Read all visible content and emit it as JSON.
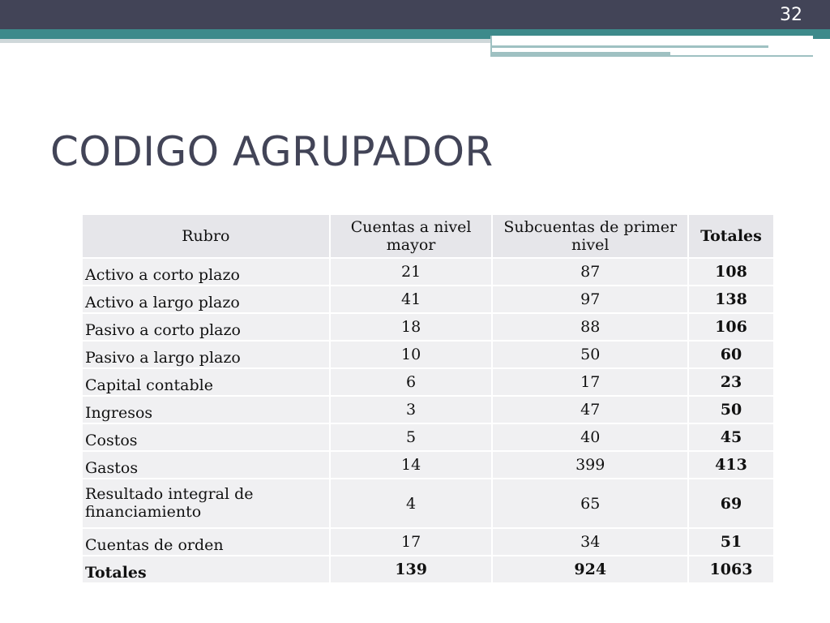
{
  "slide": {
    "page_number": "32",
    "title": "CODIGO AGRUPADOR"
  },
  "table": {
    "headers": [
      "Rubro",
      "Cuentas a nivel mayor",
      "Subcuentas de primer nivel",
      "Totales"
    ],
    "rows": [
      {
        "rubro": "Activo a corto plazo",
        "mayor": "21",
        "subcuentas": "87",
        "total": "108"
      },
      {
        "rubro": "Activo a largo plazo",
        "mayor": "41",
        "subcuentas": "97",
        "total": "138"
      },
      {
        "rubro": "Pasivo a corto plazo",
        "mayor": "18",
        "subcuentas": "88",
        "total": "106"
      },
      {
        "rubro": "Pasivo a largo plazo",
        "mayor": "10",
        "subcuentas": "50",
        "total": "60"
      },
      {
        "rubro": "Capital contable",
        "mayor": "6",
        "subcuentas": "17",
        "total": "23"
      },
      {
        "rubro": "Ingresos",
        "mayor": "3",
        "subcuentas": "47",
        "total": "50"
      },
      {
        "rubro": "Costos",
        "mayor": "5",
        "subcuentas": "40",
        "total": "45"
      },
      {
        "rubro": "Gastos",
        "mayor": "14",
        "subcuentas": "399",
        "total": "413"
      },
      {
        "rubro": "Resultado integral de financiamiento",
        "mayor": "4",
        "subcuentas": "65",
        "total": "69"
      },
      {
        "rubro": "Cuentas de orden",
        "mayor": "17",
        "subcuentas": "34",
        "total": "51"
      }
    ],
    "totals": {
      "rubro": "Totales",
      "mayor": "139",
      "subcuentas": "924",
      "total": "1063"
    }
  },
  "colors": {
    "header_dark": "#424457",
    "header_teal": "#3d8a8b",
    "accent_light": "#9fc1c2",
    "title_text": "#424457",
    "table_header_bg": "#e6e6ea",
    "table_body_bg": "#f0f0f2"
  }
}
